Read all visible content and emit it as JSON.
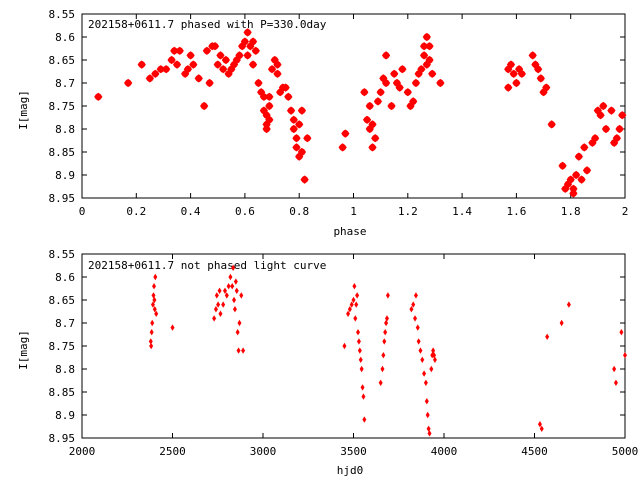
{
  "chart_data": [
    {
      "type": "scatter",
      "title": "202158+0611.7 phased with P=330.0day",
      "xlabel": "phase",
      "ylabel": "I[mag]",
      "xlim": [
        0,
        2
      ],
      "ylim": [
        8.55,
        8.95
      ],
      "y_inverted": true,
      "x_ticks": [
        "0",
        "0.2",
        "0.4",
        "0.6",
        "0.8",
        "1",
        "1.2",
        "1.4",
        "1.6",
        "1.8",
        "2"
      ],
      "y_ticks": [
        "8.55",
        "8.6",
        "8.65",
        "8.7",
        "8.75",
        "8.8",
        "8.85",
        "8.9",
        "8.95"
      ],
      "marker": "star",
      "color": "#ff0000",
      "points": [
        [
          0.06,
          8.73
        ],
        [
          0.17,
          8.7
        ],
        [
          0.22,
          8.66
        ],
        [
          0.25,
          8.69
        ],
        [
          0.27,
          8.68
        ],
        [
          0.29,
          8.67
        ],
        [
          0.31,
          8.67
        ],
        [
          0.33,
          8.65
        ],
        [
          0.34,
          8.63
        ],
        [
          0.35,
          8.66
        ],
        [
          0.36,
          8.63
        ],
        [
          0.38,
          8.68
        ],
        [
          0.39,
          8.67
        ],
        [
          0.4,
          8.64
        ],
        [
          0.41,
          8.66
        ],
        [
          0.43,
          8.69
        ],
        [
          0.45,
          8.75
        ],
        [
          0.46,
          8.63
        ],
        [
          0.47,
          8.7
        ],
        [
          0.48,
          8.62
        ],
        [
          0.49,
          8.62
        ],
        [
          0.5,
          8.66
        ],
        [
          0.51,
          8.64
        ],
        [
          0.52,
          8.67
        ],
        [
          0.53,
          8.65
        ],
        [
          0.54,
          8.68
        ],
        [
          0.55,
          8.67
        ],
        [
          0.56,
          8.66
        ],
        [
          0.57,
          8.65
        ],
        [
          0.58,
          8.64
        ],
        [
          0.59,
          8.62
        ],
        [
          0.6,
          8.61
        ],
        [
          0.61,
          8.64
        ],
        [
          0.61,
          8.59
        ],
        [
          0.62,
          8.62
        ],
        [
          0.63,
          8.61
        ],
        [
          0.63,
          8.66
        ],
        [
          0.64,
          8.63
        ],
        [
          0.65,
          8.7
        ],
        [
          0.66,
          8.72
        ],
        [
          0.67,
          8.73
        ],
        [
          0.67,
          8.76
        ],
        [
          0.68,
          8.77
        ],
        [
          0.68,
          8.79
        ],
        [
          0.68,
          8.8
        ],
        [
          0.69,
          8.73
        ],
        [
          0.69,
          8.75
        ],
        [
          0.69,
          8.78
        ],
        [
          0.7,
          8.67
        ],
        [
          0.71,
          8.65
        ],
        [
          0.72,
          8.66
        ],
        [
          0.72,
          8.68
        ],
        [
          0.73,
          8.72
        ],
        [
          0.74,
          8.71
        ],
        [
          0.75,
          8.71
        ],
        [
          0.76,
          8.73
        ],
        [
          0.77,
          8.76
        ],
        [
          0.78,
          8.78
        ],
        [
          0.78,
          8.8
        ],
        [
          0.79,
          8.82
        ],
        [
          0.79,
          8.84
        ],
        [
          0.8,
          8.86
        ],
        [
          0.81,
          8.85
        ],
        [
          0.82,
          8.91
        ],
        [
          0.83,
          8.82
        ],
        [
          0.81,
          8.76
        ],
        [
          0.8,
          8.79
        ],
        [
          0.96,
          8.84
        ],
        [
          0.97,
          8.81
        ],
        [
          1.04,
          8.72
        ],
        [
          1.05,
          8.78
        ],
        [
          1.06,
          8.8
        ],
        [
          1.06,
          8.75
        ],
        [
          1.07,
          8.79
        ],
        [
          1.07,
          8.84
        ],
        [
          1.08,
          8.82
        ],
        [
          1.09,
          8.74
        ],
        [
          1.1,
          8.72
        ],
        [
          1.11,
          8.69
        ],
        [
          1.12,
          8.7
        ],
        [
          1.12,
          8.64
        ],
        [
          1.14,
          8.75
        ],
        [
          1.15,
          8.68
        ],
        [
          1.16,
          8.7
        ],
        [
          1.17,
          8.71
        ],
        [
          1.18,
          8.67
        ],
        [
          1.2,
          8.72
        ],
        [
          1.21,
          8.75
        ],
        [
          1.22,
          8.74
        ],
        [
          1.23,
          8.7
        ],
        [
          1.24,
          8.68
        ],
        [
          1.25,
          8.67
        ],
        [
          1.26,
          8.62
        ],
        [
          1.26,
          8.64
        ],
        [
          1.27,
          8.66
        ],
        [
          1.27,
          8.6
        ],
        [
          1.28,
          8.65
        ],
        [
          1.28,
          8.62
        ],
        [
          1.29,
          8.68
        ],
        [
          1.32,
          8.7
        ],
        [
          1.57,
          8.67
        ],
        [
          1.57,
          8.71
        ],
        [
          1.58,
          8.66
        ],
        [
          1.59,
          8.68
        ],
        [
          1.6,
          8.7
        ],
        [
          1.61,
          8.67
        ],
        [
          1.62,
          8.68
        ],
        [
          1.66,
          8.64
        ],
        [
          1.67,
          8.66
        ],
        [
          1.68,
          8.67
        ],
        [
          1.69,
          8.69
        ],
        [
          1.7,
          8.72
        ],
        [
          1.71,
          8.71
        ],
        [
          1.73,
          8.79
        ],
        [
          1.77,
          8.88
        ],
        [
          1.78,
          8.93
        ],
        [
          1.79,
          8.92
        ],
        [
          1.8,
          8.91
        ],
        [
          1.81,
          8.93
        ],
        [
          1.81,
          8.94
        ],
        [
          1.82,
          8.9
        ],
        [
          1.83,
          8.86
        ],
        [
          1.84,
          8.91
        ],
        [
          1.85,
          8.84
        ],
        [
          1.86,
          8.89
        ],
        [
          1.88,
          8.83
        ],
        [
          1.89,
          8.82
        ],
        [
          1.9,
          8.76
        ],
        [
          1.91,
          8.77
        ],
        [
          1.92,
          8.75
        ],
        [
          1.93,
          8.8
        ],
        [
          1.95,
          8.76
        ],
        [
          1.96,
          8.83
        ],
        [
          1.97,
          8.82
        ],
        [
          1.98,
          8.8
        ],
        [
          1.99,
          8.77
        ]
      ]
    },
    {
      "type": "scatter",
      "title": "202158+0611.7 not phased light curve",
      "xlabel": "hjd0",
      "ylabel": "I[mag]",
      "xlim": [
        2000,
        5000
      ],
      "ylim": [
        8.55,
        8.95
      ],
      "y_inverted": true,
      "x_ticks": [
        "2000",
        "2500",
        "3000",
        "3500",
        "4000",
        "4500",
        "5000"
      ],
      "y_ticks": [
        "8.55",
        "8.6",
        "8.65",
        "8.7",
        "8.75",
        "8.8",
        "8.85",
        "8.9",
        "8.95"
      ],
      "marker": "diamond",
      "color": "#ff0000",
      "points": [
        [
          2380,
          8.74
        ],
        [
          2382,
          8.75
        ],
        [
          2385,
          8.72
        ],
        [
          2388,
          8.7
        ],
        [
          2392,
          8.66
        ],
        [
          2395,
          8.64
        ],
        [
          2398,
          8.62
        ],
        [
          2400,
          8.65
        ],
        [
          2402,
          8.67
        ],
        [
          2405,
          8.6
        ],
        [
          2410,
          8.68
        ],
        [
          2500,
          8.71
        ],
        [
          2730,
          8.69
        ],
        [
          2740,
          8.67
        ],
        [
          2745,
          8.64
        ],
        [
          2752,
          8.66
        ],
        [
          2760,
          8.63
        ],
        [
          2765,
          8.68
        ],
        [
          2780,
          8.66
        ],
        [
          2790,
          8.63
        ],
        [
          2800,
          8.64
        ],
        [
          2810,
          8.62
        ],
        [
          2820,
          8.6
        ],
        [
          2830,
          8.62
        ],
        [
          2835,
          8.58
        ],
        [
          2840,
          8.65
        ],
        [
          2845,
          8.67
        ],
        [
          2850,
          8.61
        ],
        [
          2855,
          8.63
        ],
        [
          2860,
          8.72
        ],
        [
          2865,
          8.76
        ],
        [
          2870,
          8.7
        ],
        [
          2880,
          8.64
        ],
        [
          2890,
          8.76
        ],
        [
          3450,
          8.75
        ],
        [
          3470,
          8.68
        ],
        [
          3480,
          8.67
        ],
        [
          3490,
          8.66
        ],
        [
          3500,
          8.65
        ],
        [
          3505,
          8.62
        ],
        [
          3510,
          8.69
        ],
        [
          3515,
          8.66
        ],
        [
          3520,
          8.64
        ],
        [
          3525,
          8.72
        ],
        [
          3530,
          8.74
        ],
        [
          3535,
          8.76
        ],
        [
          3540,
          8.78
        ],
        [
          3545,
          8.8
        ],
        [
          3550,
          8.84
        ],
        [
          3555,
          8.86
        ],
        [
          3560,
          8.91
        ],
        [
          3650,
          8.83
        ],
        [
          3660,
          8.8
        ],
        [
          3665,
          8.77
        ],
        [
          3670,
          8.74
        ],
        [
          3675,
          8.72
        ],
        [
          3680,
          8.7
        ],
        [
          3685,
          8.69
        ],
        [
          3690,
          8.64
        ],
        [
          3820,
          8.67
        ],
        [
          3830,
          8.66
        ],
        [
          3840,
          8.69
        ],
        [
          3845,
          8.64
        ],
        [
          3855,
          8.71
        ],
        [
          3860,
          8.74
        ],
        [
          3870,
          8.76
        ],
        [
          3880,
          8.78
        ],
        [
          3890,
          8.81
        ],
        [
          3900,
          8.83
        ],
        [
          3905,
          8.87
        ],
        [
          3910,
          8.9
        ],
        [
          3915,
          8.93
        ],
        [
          3920,
          8.94
        ],
        [
          3930,
          8.8
        ],
        [
          3935,
          8.77
        ],
        [
          3940,
          8.76
        ],
        [
          3945,
          8.77
        ],
        [
          3950,
          8.78
        ],
        [
          4530,
          8.92
        ],
        [
          4540,
          8.93
        ],
        [
          4570,
          8.73
        ],
        [
          4650,
          8.7
        ],
        [
          4690,
          8.66
        ],
        [
          4940,
          8.8
        ],
        [
          4950,
          8.83
        ],
        [
          4980,
          8.72
        ],
        [
          5000,
          8.77
        ]
      ]
    }
  ]
}
